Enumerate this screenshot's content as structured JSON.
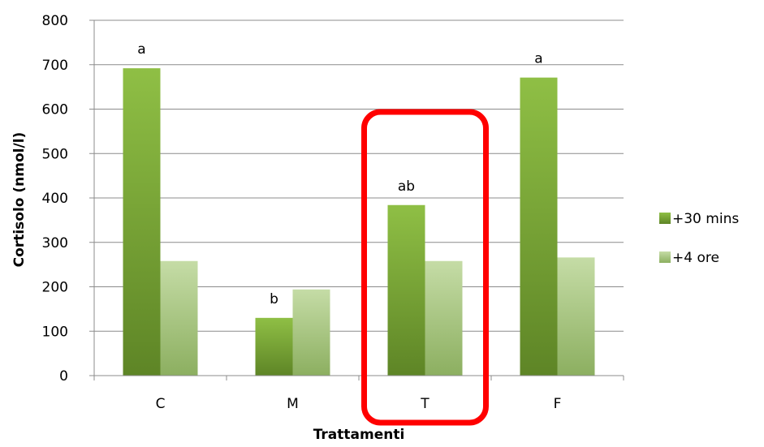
{
  "chart_data": {
    "type": "bar",
    "categories": [
      "C",
      "M",
      "T",
      "F"
    ],
    "series": [
      {
        "name": "+30 mins",
        "values": [
          692,
          130,
          384,
          671
        ]
      },
      {
        "name": "+4 ore",
        "values": [
          258,
          194,
          258,
          266
        ]
      }
    ],
    "annotations": [
      "a",
      "b",
      "ab",
      "a"
    ],
    "xlabel": "Trattamenti",
    "ylabel": "Cortisolo (nmol/l)",
    "ylim": [
      0,
      800
    ],
    "yticks": [
      0,
      100,
      200,
      300,
      400,
      500,
      600,
      700,
      800
    ],
    "grid": true,
    "legend_position": "right",
    "highlight_category": "T",
    "colors": {
      "series1_dark": "#5e8526",
      "series1_light": "#8fbf45",
      "series2_dark": "#8caf60",
      "series2_light": "#c5dca6",
      "highlight": "#ff0000",
      "grid": "#8c8c8c"
    }
  }
}
